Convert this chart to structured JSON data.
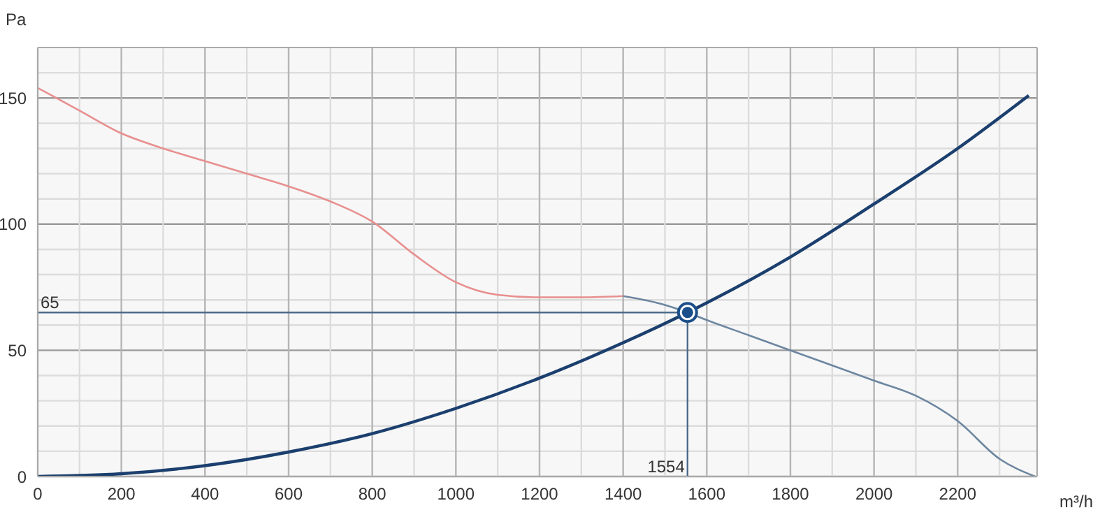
{
  "chart_data": {
    "type": "line",
    "xlabel": "m³/h",
    "ylabel": "Pa",
    "xlim": [
      0,
      2390
    ],
    "ylim": [
      0,
      170
    ],
    "xticks": [
      0,
      {
        "value": 100,
        "label": null
      },
      200,
      {
        "value": 300,
        "label": null
      },
      400,
      {
        "value": 500,
        "label": null
      },
      600,
      {
        "value": 700,
        "label": null
      },
      800,
      {
        "value": 900,
        "label": null
      },
      1000,
      {
        "value": 1100,
        "label": null
      },
      1200,
      {
        "value": 1300,
        "label": null
      },
      1400,
      {
        "value": 1500,
        "label": null
      },
      1600,
      {
        "value": 1700,
        "label": null
      },
      1800,
      {
        "value": 1900,
        "label": null
      },
      2000,
      {
        "value": 2100,
        "label": null
      },
      2200,
      {
        "value": 2300,
        "label": null
      }
    ],
    "yticks": [
      0,
      {
        "value": 10,
        "label": null
      },
      {
        "value": 20,
        "label": null
      },
      {
        "value": 30,
        "label": null
      },
      {
        "value": 40,
        "label": null
      },
      50,
      {
        "value": 60,
        "label": null
      },
      {
        "value": 70,
        "label": null
      },
      {
        "value": 80,
        "label": null
      },
      {
        "value": 90,
        "label": null
      },
      100,
      {
        "value": 110,
        "label": null
      },
      {
        "value": 120,
        "label": null
      },
      {
        "value": 130,
        "label": null
      },
      {
        "value": 140,
        "label": null
      },
      150,
      {
        "value": 160,
        "label": null
      }
    ],
    "grid": true,
    "marker": "none",
    "line_style": "solid",
    "series": [
      {
        "color": "#e88f8f",
        "x": [
          0,
          100,
          200,
          300,
          400,
          500,
          600,
          700,
          800,
          900,
          1000,
          1100,
          1200,
          1300,
          1400
        ],
        "values": [
          154,
          145,
          136,
          130,
          125,
          120,
          115,
          109,
          101,
          88,
          77,
          72,
          71,
          71,
          71.5
        ]
      },
      {
        "color": "#6d86a0",
        "x": [
          1400,
          1500,
          1554,
          1600,
          1700,
          1800,
          1900,
          2000,
          2100,
          2200,
          2300,
          2385
        ],
        "values": [
          71.5,
          68,
          65,
          62,
          56,
          50,
          44,
          38,
          32,
          22,
          7,
          0
        ]
      },
      {
        "color": "#1b3f6e",
        "x": [
          0,
          200,
          400,
          600,
          800,
          1000,
          1200,
          1400,
          1554,
          1800,
          2000,
          2200,
          2370
        ],
        "values": [
          0,
          1.1,
          4.3,
          9.7,
          17,
          27,
          39,
          53,
          65,
          87,
          108,
          130,
          151
        ]
      },
      {
        "type": "scatter",
        "color": "#1b4f8a",
        "marker": "circle",
        "x": [
          1554
        ],
        "values": [
          65
        ]
      }
    ],
    "ref_lines": [
      {
        "axis": "y",
        "value": 65,
        "label": "65",
        "color": "#4a6a8a"
      },
      {
        "axis": "x",
        "value": 1554,
        "label": "1554",
        "color": "#4a6a8a"
      }
    ]
  }
}
